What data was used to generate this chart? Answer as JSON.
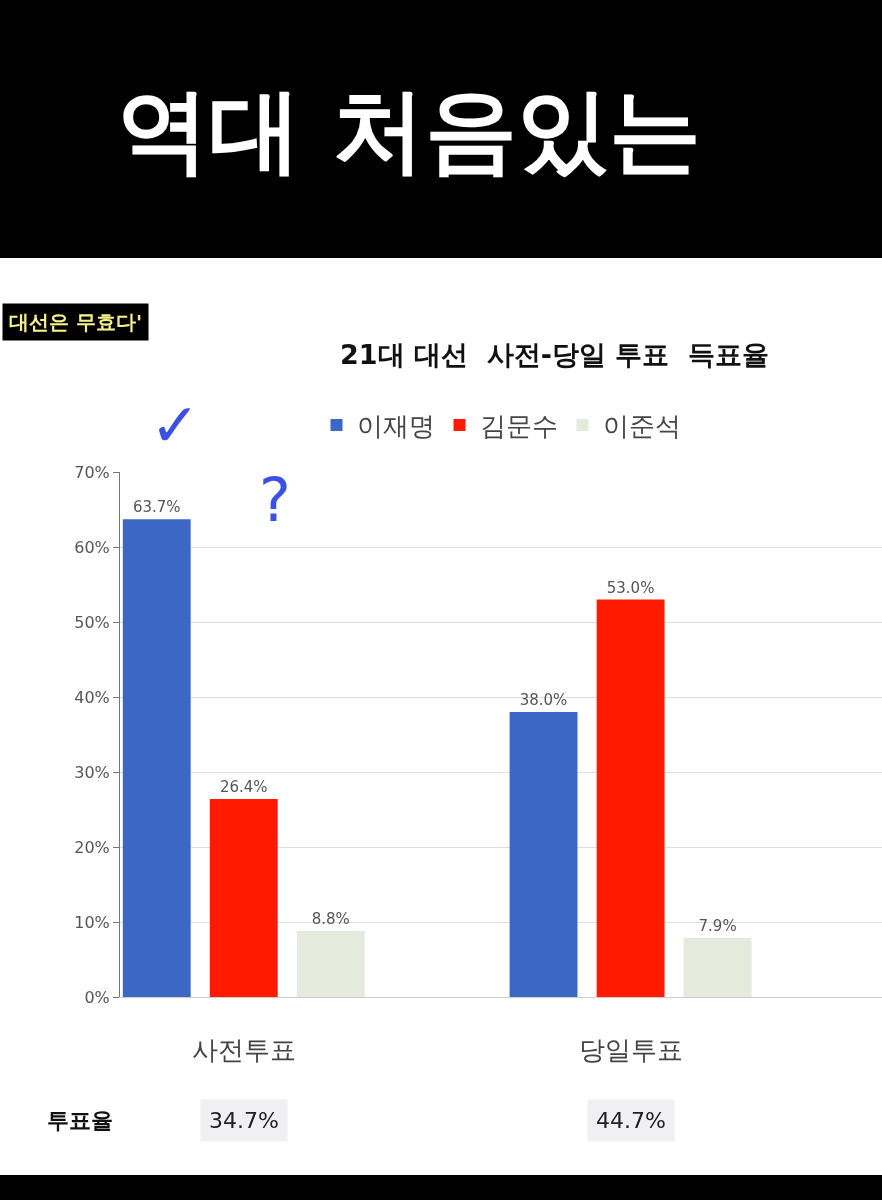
{
  "chart_data": {
    "type": "bar",
    "title": "21대 대선  사전-당일 투표  득표율",
    "categories": [
      "사전투표",
      "당일투표"
    ],
    "series": [
      {
        "name": "이재명",
        "color": "#3a68c4",
        "values": [
          63.7,
          38.0
        ],
        "value_labels": [
          "63.7%",
          "38.0%"
        ]
      },
      {
        "name": "김문수",
        "color": "#ff1a00",
        "values": [
          26.4,
          53.0
        ],
        "value_labels": [
          "26.4%",
          "53.0%"
        ]
      },
      {
        "name": "이준석",
        "color": "#e4ebdc",
        "values": [
          8.8,
          7.9
        ],
        "value_labels": [
          "8.8%",
          "7.9%"
        ]
      }
    ],
    "ylim": [
      0,
      70
    ],
    "yticks": [
      {
        "value": 0,
        "label": "0%"
      },
      {
        "value": 10,
        "label": "10%"
      },
      {
        "value": 20,
        "label": "20%"
      },
      {
        "value": 30,
        "label": "30%"
      },
      {
        "value": 40,
        "label": "40%"
      },
      {
        "value": 50,
        "label": "50%"
      },
      {
        "value": 60,
        "label": "60%"
      },
      {
        "value": 70,
        "label": "70%"
      }
    ],
    "grid": "y",
    "legend": "top",
    "annotations": [
      "역대 처음있는",
      "대선은 무효다'",
      "투표율",
      "34.7%",
      "44.7%",
      "✓",
      "?"
    ]
  }
}
